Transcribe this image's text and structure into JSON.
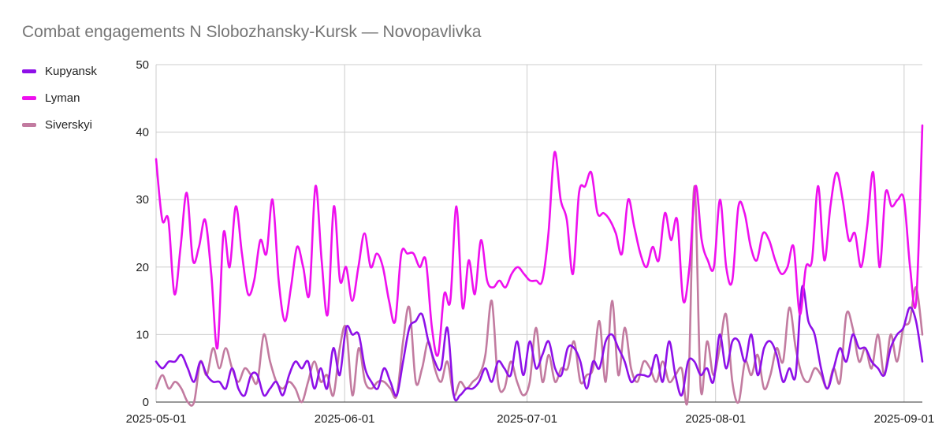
{
  "chart_data": {
    "type": "line",
    "title": "Combat engagements N Slobozhansky-Kursk — Novopavlivka",
    "xlabel": "",
    "ylabel": "",
    "ylim": [
      0,
      50
    ],
    "y_ticks": [
      "0",
      "10",
      "20",
      "30",
      "40",
      "50"
    ],
    "x_range": [
      "2025-05-01",
      "2025-09-04"
    ],
    "x_ticks": [
      "2025-05-01",
      "2025-06-01",
      "2025-07-01",
      "2025-08-01",
      "2025-09-01"
    ],
    "grid": true,
    "legend_position": "left",
    "series": [
      {
        "name": "Kupyansk",
        "color": "#8e10e8",
        "values": [
          6,
          5,
          6,
          6,
          7,
          5,
          3,
          6,
          4,
          3,
          3,
          2,
          5,
          2,
          1,
          4,
          4,
          1,
          2,
          3,
          1,
          4,
          6,
          5,
          6,
          2,
          5,
          2,
          8,
          4,
          11,
          10,
          10,
          5,
          3,
          2,
          5,
          3,
          1,
          6,
          11,
          12,
          13,
          9,
          6,
          5,
          11,
          1,
          1,
          2,
          2,
          3,
          5,
          3,
          6,
          5,
          4,
          9,
          4,
          9,
          5,
          7,
          9,
          5,
          4,
          8,
          8,
          6,
          2,
          6,
          5,
          9,
          10,
          8,
          6,
          3,
          4,
          4,
          4,
          7,
          3,
          9,
          4,
          1,
          6,
          6,
          4,
          5,
          3,
          10,
          5,
          9,
          9,
          6,
          10,
          4,
          8,
          9,
          7,
          3,
          5,
          4,
          17,
          12,
          10,
          5,
          2,
          5,
          8,
          6,
          10,
          8,
          8,
          6,
          5,
          4,
          8,
          10,
          11,
          14,
          12,
          6
        ]
      },
      {
        "name": "Lyman",
        "color": "#ee10ee",
        "values": [
          36,
          27,
          27,
          16,
          23,
          31,
          21,
          23,
          27,
          19,
          8,
          25,
          20,
          29,
          22,
          16,
          18,
          24,
          22,
          30,
          18,
          12,
          17,
          23,
          20,
          16,
          32,
          21,
          13,
          29,
          18,
          20,
          15,
          20,
          25,
          20,
          22,
          20,
          15,
          12,
          22,
          22,
          22,
          20,
          21,
          11,
          7,
          16,
          15,
          29,
          14,
          21,
          16,
          24,
          18,
          17,
          18,
          17,
          19,
          20,
          19,
          18,
          18,
          18,
          25,
          37,
          30,
          27,
          19,
          31,
          32,
          34,
          28,
          28,
          27,
          25,
          22,
          30,
          26,
          22,
          20,
          23,
          21,
          28,
          24,
          27,
          15,
          20,
          32,
          24,
          21,
          20,
          30,
          20,
          18,
          29,
          28,
          23,
          21,
          25,
          24,
          21,
          19,
          20,
          23,
          13,
          20,
          21,
          32,
          21,
          29,
          34,
          30,
          24,
          25,
          20,
          26,
          34,
          20,
          31,
          29,
          30,
          30,
          20,
          15,
          41
        ]
      },
      {
        "name": "Siverskyi",
        "color": "#c27ba0",
        "values": [
          2,
          4,
          2,
          3,
          2,
          0,
          0,
          6,
          4,
          8,
          5,
          8,
          5,
          3,
          5,
          4,
          3,
          10,
          6,
          3,
          2,
          3,
          2,
          0,
          3,
          6,
          3,
          4,
          1,
          8,
          11,
          1,
          8,
          3,
          2,
          3,
          3,
          2,
          1,
          9,
          14,
          3,
          5,
          9,
          5,
          3,
          6,
          1,
          3,
          2,
          3,
          4,
          7,
          15,
          3,
          2,
          6,
          3,
          1,
          3,
          11,
          3,
          7,
          3,
          5,
          5,
          9,
          3,
          4,
          5,
          12,
          3,
          15,
          4,
          11,
          5,
          3,
          6,
          5,
          3,
          6,
          3,
          4,
          5,
          1,
          32,
          2,
          9,
          4,
          8,
          13,
          3,
          0,
          6,
          4,
          7,
          2,
          4,
          8,
          6,
          14,
          8,
          4,
          3,
          5,
          4,
          2,
          5,
          3,
          13,
          11,
          6,
          8,
          5,
          10,
          4,
          10,
          6,
          11,
          12,
          17,
          10
        ]
      }
    ]
  }
}
